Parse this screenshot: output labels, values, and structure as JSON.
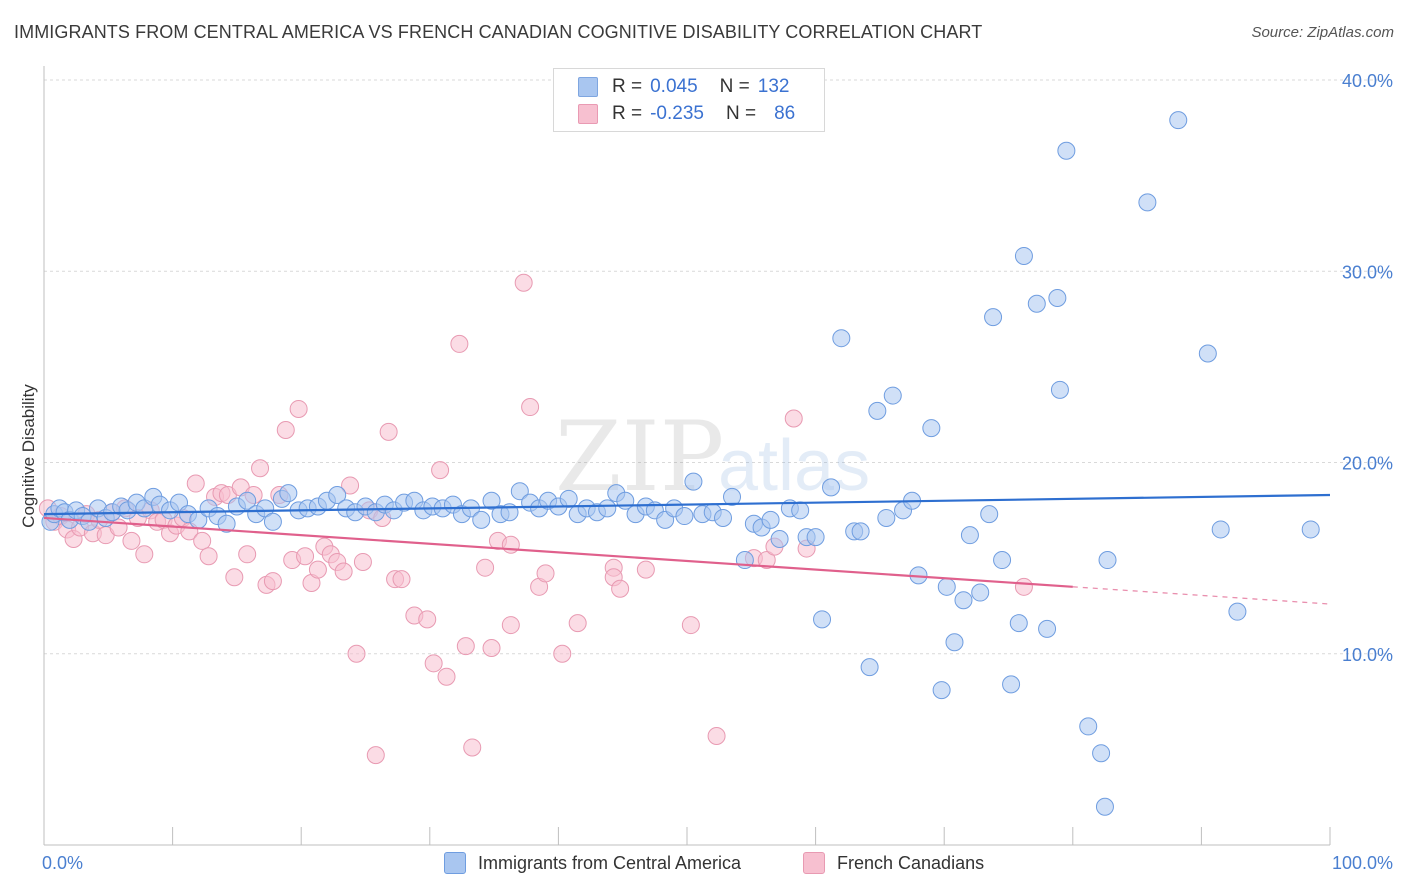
{
  "title": "IMMIGRANTS FROM CENTRAL AMERICA VS FRENCH CANADIAN COGNITIVE DISABILITY CORRELATION CHART",
  "source": "Source: ZipAtlas.com",
  "watermark": {
    "zip": "ZIP",
    "atlas": "atlas"
  },
  "legend_top": [
    {
      "r_label": "R =",
      "r_value": "0.045",
      "n_label": "N =",
      "n_value": "132",
      "color": "#a9c6f0",
      "border": "#7fa6e0"
    },
    {
      "r_label": "R =",
      "r_value": "-0.235",
      "n_label": "N =",
      "n_value": "86",
      "color": "#f7c0d0",
      "border": "#e99ab3"
    }
  ],
  "chart_data": {
    "type": "scatter",
    "title": "IMMIGRANTS FROM CENTRAL AMERICA VS FRENCH CANADIAN COGNITIVE DISABILITY CORRELATION CHART",
    "xlabel": "",
    "ylabel": "Cognitive Disability",
    "xlim": [
      0,
      100
    ],
    "ylim": [
      0,
      40
    ],
    "x_tick_labels": [
      "0.0%",
      "100.0%"
    ],
    "y_ticks": [
      10,
      20,
      30,
      40
    ],
    "y_tick_labels": [
      "10.0%",
      "20.0%",
      "30.0%",
      "40.0%"
    ],
    "grid": true,
    "legend_position": "bottom",
    "series": [
      {
        "name": "Immigrants from Central America",
        "color": "#a9c6f0",
        "stroke": "#6f9de0",
        "line_color": "#2e6fd0",
        "trend": {
          "x": [
            0,
            100
          ],
          "y": [
            17.3,
            18.3
          ],
          "dashed_from": null
        },
        "points": [
          [
            0.5,
            16.9
          ],
          [
            0.8,
            17.3
          ],
          [
            1.2,
            17.6
          ],
          [
            1.6,
            17.4
          ],
          [
            2.0,
            17.0
          ],
          [
            2.5,
            17.5
          ],
          [
            3.0,
            17.2
          ],
          [
            3.5,
            16.9
          ],
          [
            4.2,
            17.6
          ],
          [
            4.8,
            17.1
          ],
          [
            5.3,
            17.4
          ],
          [
            6.0,
            17.7
          ],
          [
            6.5,
            17.5
          ],
          [
            7.2,
            17.9
          ],
          [
            7.8,
            17.6
          ],
          [
            8.5,
            18.2
          ],
          [
            9.0,
            17.8
          ],
          [
            9.8,
            17.5
          ],
          [
            10.5,
            17.9
          ],
          [
            11.2,
            17.3
          ],
          [
            12.0,
            17.0
          ],
          [
            12.8,
            17.6
          ],
          [
            13.5,
            17.2
          ],
          [
            14.2,
            16.8
          ],
          [
            15.0,
            17.7
          ],
          [
            15.8,
            18.0
          ],
          [
            16.5,
            17.3
          ],
          [
            17.2,
            17.6
          ],
          [
            17.8,
            16.9
          ],
          [
            18.5,
            18.1
          ],
          [
            19.0,
            18.4
          ],
          [
            19.8,
            17.5
          ],
          [
            20.5,
            17.6
          ],
          [
            21.3,
            17.7
          ],
          [
            22.0,
            18.0
          ],
          [
            22.8,
            18.3
          ],
          [
            23.5,
            17.6
          ],
          [
            24.2,
            17.4
          ],
          [
            25.0,
            17.7
          ],
          [
            25.8,
            17.4
          ],
          [
            26.5,
            17.8
          ],
          [
            27.2,
            17.5
          ],
          [
            28.0,
            17.9
          ],
          [
            28.8,
            18.0
          ],
          [
            29.5,
            17.5
          ],
          [
            30.2,
            17.7
          ],
          [
            31.0,
            17.6
          ],
          [
            31.8,
            17.8
          ],
          [
            32.5,
            17.3
          ],
          [
            33.2,
            17.6
          ],
          [
            34.0,
            17.0
          ],
          [
            34.8,
            18.0
          ],
          [
            35.5,
            17.3
          ],
          [
            36.2,
            17.4
          ],
          [
            37.0,
            18.5
          ],
          [
            37.8,
            17.9
          ],
          [
            38.5,
            17.6
          ],
          [
            39.2,
            18.0
          ],
          [
            40.0,
            17.7
          ],
          [
            40.8,
            18.1
          ],
          [
            41.5,
            17.3
          ],
          [
            42.2,
            17.6
          ],
          [
            43.0,
            17.4
          ],
          [
            43.8,
            17.6
          ],
          [
            44.5,
            18.4
          ],
          [
            45.2,
            18.0
          ],
          [
            46.0,
            17.3
          ],
          [
            46.8,
            17.7
          ],
          [
            47.5,
            17.5
          ],
          [
            48.3,
            17.0
          ],
          [
            49.0,
            17.6
          ],
          [
            49.8,
            17.2
          ],
          [
            50.5,
            19.0
          ],
          [
            51.2,
            17.3
          ],
          [
            52.0,
            17.4
          ],
          [
            52.8,
            17.1
          ],
          [
            53.5,
            18.2
          ],
          [
            54.5,
            14.9
          ],
          [
            55.2,
            16.8
          ],
          [
            55.8,
            16.6
          ],
          [
            56.5,
            17.0
          ],
          [
            57.2,
            16.0
          ],
          [
            58.0,
            17.6
          ],
          [
            58.8,
            17.5
          ],
          [
            59.3,
            16.1
          ],
          [
            60.0,
            16.1
          ],
          [
            60.5,
            11.8
          ],
          [
            61.2,
            18.7
          ],
          [
            62.0,
            26.5
          ],
          [
            63.0,
            16.4
          ],
          [
            63.5,
            16.4
          ],
          [
            64.2,
            9.3
          ],
          [
            64.8,
            22.7
          ],
          [
            65.5,
            17.1
          ],
          [
            66.0,
            23.5
          ],
          [
            66.8,
            17.5
          ],
          [
            67.5,
            18.0
          ],
          [
            68.0,
            14.1
          ],
          [
            69.0,
            21.8
          ],
          [
            69.8,
            8.1
          ],
          [
            70.2,
            13.5
          ],
          [
            70.8,
            10.6
          ],
          [
            71.5,
            12.8
          ],
          [
            72.0,
            16.2
          ],
          [
            72.8,
            13.2
          ],
          [
            73.5,
            17.3
          ],
          [
            73.8,
            27.6
          ],
          [
            74.5,
            14.9
          ],
          [
            75.2,
            8.4
          ],
          [
            75.8,
            11.6
          ],
          [
            76.2,
            30.8
          ],
          [
            77.2,
            28.3
          ],
          [
            78.0,
            11.3
          ],
          [
            78.8,
            28.6
          ],
          [
            79.0,
            23.8
          ],
          [
            79.5,
            36.3
          ],
          [
            81.2,
            6.2
          ],
          [
            82.2,
            4.8
          ],
          [
            82.5,
            2.0
          ],
          [
            82.7,
            14.9
          ],
          [
            85.8,
            33.6
          ],
          [
            88.2,
            37.9
          ],
          [
            90.5,
            25.7
          ],
          [
            91.5,
            16.5
          ],
          [
            92.8,
            12.2
          ],
          [
            98.5,
            16.5
          ]
        ]
      },
      {
        "name": "French Canadians",
        "color": "#f7c0d0",
        "stroke": "#e89ab2",
        "line_color": "#e0608c",
        "trend": {
          "x": [
            0,
            100
          ],
          "y": [
            17.1,
            12.6
          ],
          "dashed_from": 80
        },
        "points": [
          [
            0.3,
            17.6
          ],
          [
            0.8,
            16.9
          ],
          [
            1.3,
            17.2
          ],
          [
            1.8,
            16.5
          ],
          [
            2.3,
            16.0
          ],
          [
            2.8,
            16.6
          ],
          [
            3.3,
            17.3
          ],
          [
            3.8,
            16.3
          ],
          [
            4.3,
            17.0
          ],
          [
            4.8,
            16.2
          ],
          [
            5.3,
            17.4
          ],
          [
            5.8,
            16.6
          ],
          [
            6.3,
            17.6
          ],
          [
            6.8,
            15.9
          ],
          [
            7.3,
            17.1
          ],
          [
            7.8,
            15.2
          ],
          [
            8.3,
            17.5
          ],
          [
            8.8,
            16.9
          ],
          [
            9.3,
            17.0
          ],
          [
            9.8,
            16.3
          ],
          [
            10.3,
            16.7
          ],
          [
            10.8,
            17.1
          ],
          [
            11.3,
            16.4
          ],
          [
            11.8,
            18.9
          ],
          [
            12.3,
            15.9
          ],
          [
            12.8,
            15.1
          ],
          [
            13.3,
            18.2
          ],
          [
            13.8,
            18.4
          ],
          [
            14.3,
            18.3
          ],
          [
            14.8,
            14.0
          ],
          [
            15.3,
            18.7
          ],
          [
            15.8,
            15.2
          ],
          [
            16.3,
            18.3
          ],
          [
            16.8,
            19.7
          ],
          [
            17.3,
            13.6
          ],
          [
            17.8,
            13.8
          ],
          [
            18.3,
            18.3
          ],
          [
            18.8,
            21.7
          ],
          [
            19.3,
            14.9
          ],
          [
            19.8,
            22.8
          ],
          [
            20.3,
            15.1
          ],
          [
            20.8,
            13.7
          ],
          [
            21.3,
            14.4
          ],
          [
            21.8,
            15.6
          ],
          [
            22.3,
            15.2
          ],
          [
            22.8,
            14.8
          ],
          [
            23.3,
            14.3
          ],
          [
            23.8,
            18.8
          ],
          [
            24.3,
            10.0
          ],
          [
            24.8,
            14.8
          ],
          [
            25.3,
            17.5
          ],
          [
            25.8,
            4.7
          ],
          [
            26.3,
            17.1
          ],
          [
            26.8,
            21.6
          ],
          [
            27.3,
            13.9
          ],
          [
            27.8,
            13.9
          ],
          [
            28.8,
            12.0
          ],
          [
            29.8,
            11.8
          ],
          [
            30.3,
            9.5
          ],
          [
            30.8,
            19.6
          ],
          [
            31.3,
            8.8
          ],
          [
            32.3,
            26.2
          ],
          [
            32.8,
            10.4
          ],
          [
            33.3,
            5.1
          ],
          [
            34.3,
            14.5
          ],
          [
            34.8,
            10.3
          ],
          [
            35.3,
            15.9
          ],
          [
            36.3,
            11.5
          ],
          [
            36.3,
            15.7
          ],
          [
            37.3,
            29.4
          ],
          [
            37.8,
            22.9
          ],
          [
            38.5,
            13.5
          ],
          [
            39.0,
            14.2
          ],
          [
            40.3,
            10.0
          ],
          [
            41.5,
            11.6
          ],
          [
            44.3,
            14.5
          ],
          [
            44.3,
            14.0
          ],
          [
            44.8,
            13.4
          ],
          [
            46.8,
            14.4
          ],
          [
            50.3,
            11.5
          ],
          [
            52.3,
            5.7
          ],
          [
            55.2,
            15.0
          ],
          [
            56.2,
            14.9
          ],
          [
            56.8,
            15.6
          ],
          [
            58.3,
            22.3
          ],
          [
            59.3,
            15.5
          ],
          [
            76.2,
            13.5
          ]
        ]
      }
    ]
  },
  "legend_bottom": [
    {
      "label": "Immigrants from Central America",
      "color": "#a9c6f0",
      "border": "#6f9de0"
    },
    {
      "label": "French Canadians",
      "color": "#f7c0d0",
      "border": "#e89ab2"
    }
  ]
}
